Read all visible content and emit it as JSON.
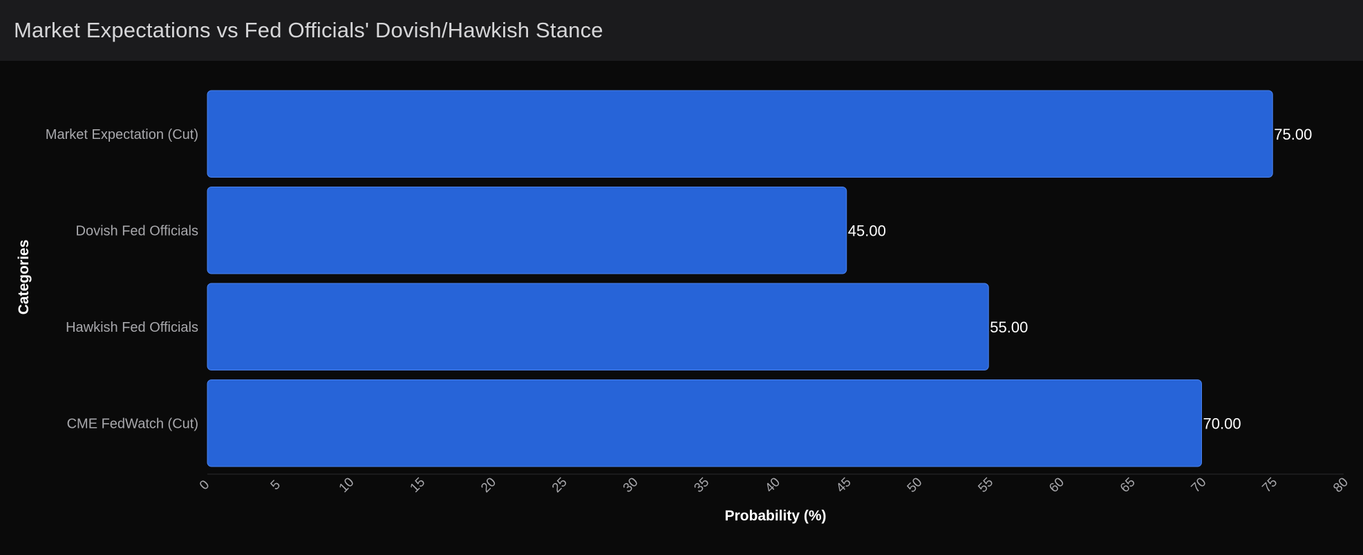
{
  "header": {
    "title": "Market Expectations vs Fed Officials' Dovish/Hawkish Stance"
  },
  "colors": {
    "background": "#0a0a0a",
    "header_bg": "#1b1b1d",
    "bar": "#2764d8",
    "bar_stroke": "#4a82ec",
    "text": "#d6d6d8",
    "tick_text": "#a8a8ac"
  },
  "chart_data": {
    "type": "bar",
    "orientation": "horizontal",
    "title": "Market Expectations vs Fed Officials' Dovish/Hawkish Stance",
    "xlabel": "Probability (%)",
    "ylabel": "Categories",
    "categories": [
      "Market Expectation (Cut)",
      "Dovish Fed Officials",
      "Hawkish Fed Officials",
      "CME FedWatch (Cut)"
    ],
    "values": [
      75,
      45,
      55,
      70
    ],
    "value_labels": [
      "75.00",
      "45.00",
      "55.00",
      "70.00"
    ],
    "xlim": [
      0,
      80
    ],
    "xticks": [
      "0",
      "5",
      "10",
      "15",
      "20",
      "25",
      "30",
      "35",
      "40",
      "45",
      "50",
      "55",
      "60",
      "65",
      "70",
      "75",
      "80"
    ],
    "grid": false,
    "legend": "none"
  }
}
